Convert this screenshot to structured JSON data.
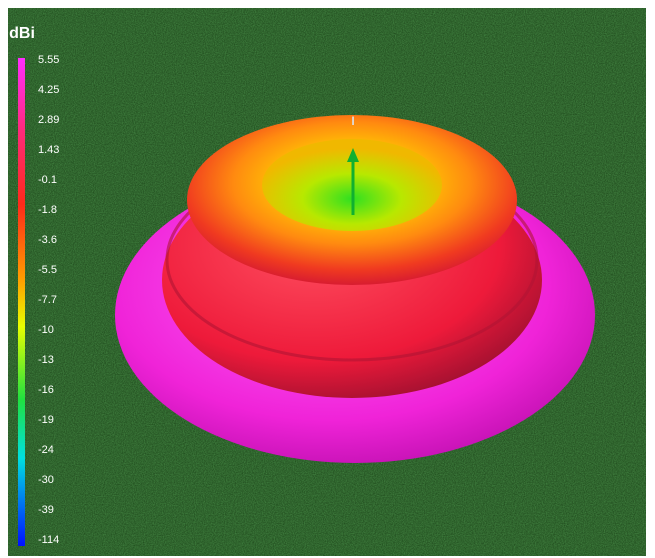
{
  "colorbar": {
    "title": "dBi",
    "labels": [
      "5.55",
      "4.25",
      "2.89",
      "1.43",
      "-0.1",
      "-1.8",
      "-3.6",
      "-5.5",
      "-7.7",
      "-10",
      "-13",
      "-16",
      "-19",
      "-24",
      "-30",
      "-39",
      "-114"
    ]
  }
}
